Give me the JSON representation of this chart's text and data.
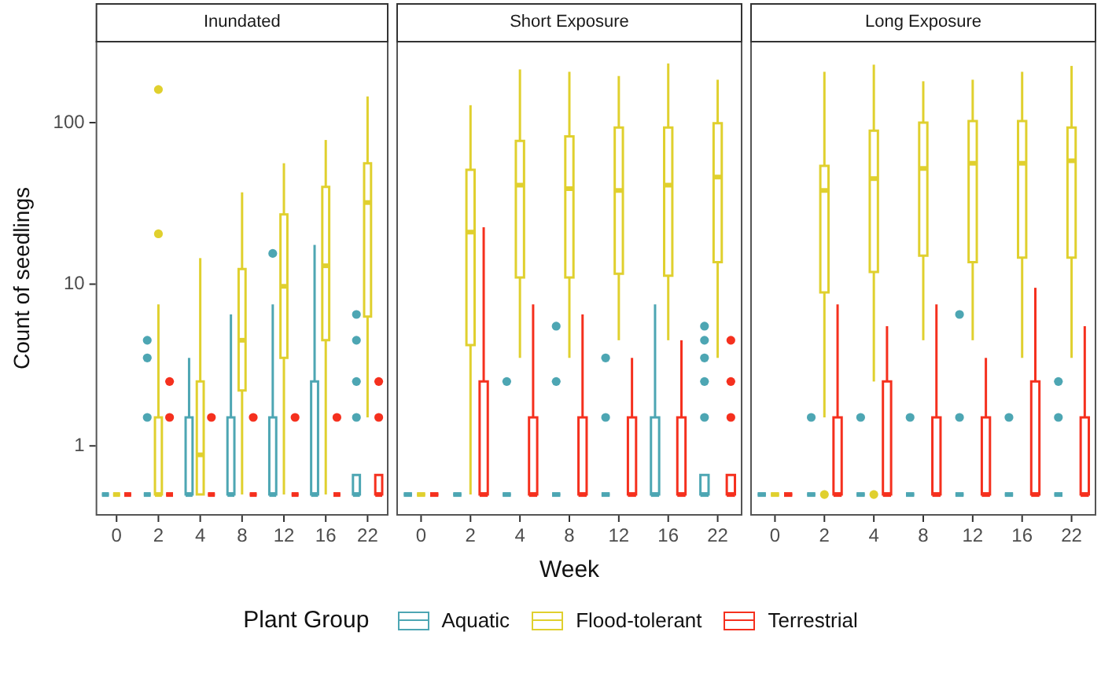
{
  "chart_data": [
    {
      "type": "box",
      "title": "Inundated",
      "ylabel": "Count of seedlings",
      "log": "y",
      "ylim": [
        0.37,
        320
      ],
      "yticks": [
        1,
        10,
        100
      ],
      "legend": "bottom",
      "legend_title": "Plant Group",
      "categories": [
        "0",
        "2",
        "4",
        "8",
        "12",
        "16",
        "22"
      ],
      "series": [
        {
          "name": "Aquatic",
          "color": "#4da6b3",
          "boxes": [
            {
              "low": 0.5,
              "q1": 0.5,
              "median": 0.5,
              "q3": 0.5,
              "high": 0.5
            },
            {
              "low": 0.5,
              "q1": 0.5,
              "median": 0.5,
              "q3": 0.5,
              "high": 0.5,
              "outliers": [
                1.5,
                3.5,
                4.5
              ]
            },
            {
              "low": 0.5,
              "q1": 0.5,
              "median": 0.5,
              "q3": 1.5,
              "high": 3.5
            },
            {
              "low": 0.5,
              "q1": 0.5,
              "median": 0.5,
              "q3": 1.5,
              "high": 6.5
            },
            {
              "low": 0.5,
              "q1": 0.5,
              "median": 0.5,
              "q3": 1.5,
              "high": 7.5,
              "outliers": [
                15.5
              ]
            },
            {
              "low": 0.5,
              "q1": 0.5,
              "median": 0.5,
              "q3": 2.5,
              "high": 17.5
            },
            {
              "low": 0.5,
              "q1": 0.5,
              "median": 0.5,
              "q3": 0.66,
              "high": 0.66,
              "outliers": [
                1.5,
                2.5,
                4.5,
                6.5
              ]
            }
          ]
        },
        {
          "name": "Flood-tolerant",
          "color": "#e0d02e",
          "boxes": [
            {
              "low": 0.5,
              "q1": 0.5,
              "median": 0.5,
              "q3": 0.5,
              "high": 0.5
            },
            {
              "low": 0.5,
              "q1": 0.5,
              "median": 0.5,
              "q3": 1.5,
              "high": 7.5,
              "outliers": [
                20.5,
                160
              ]
            },
            {
              "low": 0.5,
              "q1": 0.5,
              "median": 0.88,
              "q3": 2.5,
              "high": 14.5
            },
            {
              "low": 0.5,
              "q1": 2.2,
              "median": 4.5,
              "q3": 12.4,
              "high": 37
            },
            {
              "low": 0.5,
              "q1": 3.5,
              "median": 9.7,
              "q3": 27,
              "high": 56
            },
            {
              "low": 0.5,
              "q1": 4.5,
              "median": 13,
              "q3": 40,
              "high": 78
            },
            {
              "low": 1.5,
              "q1": 6.3,
              "median": 32,
              "q3": 56,
              "high": 145
            }
          ]
        },
        {
          "name": "Terrestrial",
          "color": "#f5301e",
          "boxes": [
            {
              "low": 0.5,
              "q1": 0.5,
              "median": 0.5,
              "q3": 0.5,
              "high": 0.5
            },
            {
              "low": 0.5,
              "q1": 0.5,
              "median": 0.5,
              "q3": 0.5,
              "high": 0.5,
              "outliers": [
                1.5,
                2.5
              ]
            },
            {
              "low": 0.5,
              "q1": 0.5,
              "median": 0.5,
              "q3": 0.5,
              "high": 0.5,
              "outliers": [
                1.5
              ]
            },
            {
              "low": 0.5,
              "q1": 0.5,
              "median": 0.5,
              "q3": 0.5,
              "high": 0.5,
              "outliers": [
                1.5
              ]
            },
            {
              "low": 0.5,
              "q1": 0.5,
              "median": 0.5,
              "q3": 0.5,
              "high": 0.5,
              "outliers": [
                1.5
              ]
            },
            {
              "low": 0.5,
              "q1": 0.5,
              "median": 0.5,
              "q3": 0.5,
              "high": 0.5,
              "outliers": [
                1.5
              ]
            },
            {
              "low": 0.5,
              "q1": 0.5,
              "median": 0.5,
              "q3": 0.66,
              "high": 0.66,
              "outliers": [
                1.5,
                2.5
              ]
            }
          ]
        }
      ]
    },
    {
      "type": "box",
      "title": "Short Exposure",
      "xlabel": "Week",
      "log": "y",
      "ylim": [
        0.37,
        320
      ],
      "yticks": [
        1,
        10,
        100
      ],
      "tick_labels": "x",
      "categories": [
        "0",
        "2",
        "4",
        "8",
        "12",
        "16",
        "22"
      ],
      "series": [
        {
          "name": "Aquatic",
          "color": "#4da6b3",
          "boxes": [
            {
              "low": 0.5,
              "q1": 0.5,
              "median": 0.5,
              "q3": 0.5,
              "high": 0.5
            },
            {
              "low": 0.5,
              "q1": 0.5,
              "median": 0.5,
              "q3": 0.5,
              "high": 0.5
            },
            {
              "low": 0.5,
              "q1": 0.5,
              "median": 0.5,
              "q3": 0.5,
              "high": 0.5,
              "outliers": [
                2.5
              ]
            },
            {
              "low": 0.5,
              "q1": 0.5,
              "median": 0.5,
              "q3": 0.5,
              "high": 0.5,
              "outliers": [
                2.5,
                5.5
              ]
            },
            {
              "low": 0.5,
              "q1": 0.5,
              "median": 0.5,
              "q3": 0.5,
              "high": 0.5,
              "outliers": [
                1.5,
                3.5
              ]
            },
            {
              "low": 0.5,
              "q1": 0.5,
              "median": 0.5,
              "q3": 1.5,
              "high": 7.5
            },
            {
              "low": 0.5,
              "q1": 0.5,
              "median": 0.5,
              "q3": 0.66,
              "high": 0.66,
              "outliers": [
                1.5,
                2.5,
                3.5,
                4.5,
                5.5
              ]
            }
          ]
        },
        {
          "name": "Flood-tolerant",
          "color": "#e0d02e",
          "boxes": [
            {
              "low": 0.5,
              "q1": 0.5,
              "median": 0.5,
              "q3": 0.5,
              "high": 0.5
            },
            {
              "low": 0.5,
              "q1": 4.2,
              "median": 21,
              "q3": 51,
              "high": 128
            },
            {
              "low": 3.5,
              "q1": 11,
              "median": 41,
              "q3": 77,
              "high": 213
            },
            {
              "low": 3.5,
              "q1": 11,
              "median": 39,
              "q3": 82,
              "high": 206
            },
            {
              "low": 4.5,
              "q1": 11.6,
              "median": 38,
              "q3": 93,
              "high": 194
            },
            {
              "low": 4.5,
              "q1": 11.3,
              "median": 41,
              "q3": 93,
              "high": 232
            },
            {
              "low": 3.5,
              "q1": 13.7,
              "median": 46,
              "q3": 99,
              "high": 184
            }
          ]
        },
        {
          "name": "Terrestrial",
          "color": "#f5301e",
          "boxes": [
            {
              "low": 0.5,
              "q1": 0.5,
              "median": 0.5,
              "q3": 0.5,
              "high": 0.5
            },
            {
              "low": 0.5,
              "q1": 0.5,
              "median": 0.5,
              "q3": 2.5,
              "high": 22.5
            },
            {
              "low": 0.5,
              "q1": 0.5,
              "median": 0.5,
              "q3": 1.5,
              "high": 7.5
            },
            {
              "low": 0.5,
              "q1": 0.5,
              "median": 0.5,
              "q3": 1.5,
              "high": 6.5
            },
            {
              "low": 0.5,
              "q1": 0.5,
              "median": 0.5,
              "q3": 1.5,
              "high": 3.5
            },
            {
              "low": 0.5,
              "q1": 0.5,
              "median": 0.5,
              "q3": 1.5,
              "high": 4.5
            },
            {
              "low": 0.5,
              "q1": 0.5,
              "median": 0.5,
              "q3": 0.66,
              "high": 0.66,
              "outliers": [
                1.5,
                2.5,
                4.5
              ]
            }
          ]
        }
      ]
    },
    {
      "type": "box",
      "title": "Long Exposure",
      "log": "y",
      "ylim": [
        0.37,
        320
      ],
      "yticks": [
        1,
        10,
        100
      ],
      "tick_labels": "x",
      "categories": [
        "0",
        "2",
        "4",
        "8",
        "12",
        "16",
        "22"
      ],
      "series": [
        {
          "name": "Aquatic",
          "color": "#4da6b3",
          "boxes": [
            {
              "low": 0.5,
              "q1": 0.5,
              "median": 0.5,
              "q3": 0.5,
              "high": 0.5
            },
            {
              "low": 0.5,
              "q1": 0.5,
              "median": 0.5,
              "q3": 0.5,
              "high": 0.5,
              "outliers": [
                1.5
              ]
            },
            {
              "low": 0.5,
              "q1": 0.5,
              "median": 0.5,
              "q3": 0.5,
              "high": 0.5,
              "outliers": [
                1.5
              ]
            },
            {
              "low": 0.5,
              "q1": 0.5,
              "median": 0.5,
              "q3": 0.5,
              "high": 0.5,
              "outliers": [
                1.5
              ]
            },
            {
              "low": 0.5,
              "q1": 0.5,
              "median": 0.5,
              "q3": 0.5,
              "high": 0.5,
              "outliers": [
                1.5,
                6.5
              ]
            },
            {
              "low": 0.5,
              "q1": 0.5,
              "median": 0.5,
              "q3": 0.5,
              "high": 0.5,
              "outliers": [
                1.5
              ]
            },
            {
              "low": 0.5,
              "q1": 0.5,
              "median": 0.5,
              "q3": 0.5,
              "high": 0.5,
              "outliers": [
                1.5,
                2.5
              ]
            }
          ]
        },
        {
          "name": "Flood-tolerant",
          "color": "#e0d02e",
          "boxes": [
            {
              "low": 0.5,
              "q1": 0.5,
              "median": 0.5,
              "q3": 0.5,
              "high": 0.5
            },
            {
              "low": 1.5,
              "q1": 8.9,
              "median": 38,
              "q3": 54,
              "high": 206,
              "outliers": [
                0.5
              ]
            },
            {
              "low": 2.5,
              "q1": 11.9,
              "median": 45,
              "q3": 89,
              "high": 228,
              "outliers": [
                0.5
              ]
            },
            {
              "low": 4.5,
              "q1": 15,
              "median": 52,
              "q3": 100,
              "high": 180
            },
            {
              "low": 4.5,
              "q1": 13.7,
              "median": 56,
              "q3": 102,
              "high": 184
            },
            {
              "low": 3.5,
              "q1": 14.6,
              "median": 56,
              "q3": 102,
              "high": 206
            },
            {
              "low": 3.5,
              "q1": 14.6,
              "median": 58,
              "q3": 93,
              "high": 224
            }
          ]
        },
        {
          "name": "Terrestrial",
          "color": "#f5301e",
          "boxes": [
            {
              "low": 0.5,
              "q1": 0.5,
              "median": 0.5,
              "q3": 0.5,
              "high": 0.5
            },
            {
              "low": 0.5,
              "q1": 0.5,
              "median": 0.5,
              "q3": 1.5,
              "high": 7.5
            },
            {
              "low": 0.5,
              "q1": 0.5,
              "median": 0.5,
              "q3": 2.5,
              "high": 5.5
            },
            {
              "low": 0.5,
              "q1": 0.5,
              "median": 0.5,
              "q3": 1.5,
              "high": 7.5
            },
            {
              "low": 0.5,
              "q1": 0.5,
              "median": 0.5,
              "q3": 1.5,
              "high": 3.5
            },
            {
              "low": 0.5,
              "q1": 0.5,
              "median": 0.5,
              "q3": 2.5,
              "high": 9.5
            },
            {
              "low": 0.5,
              "q1": 0.5,
              "median": 0.5,
              "q3": 1.5,
              "high": 5.5
            }
          ]
        }
      ]
    }
  ]
}
